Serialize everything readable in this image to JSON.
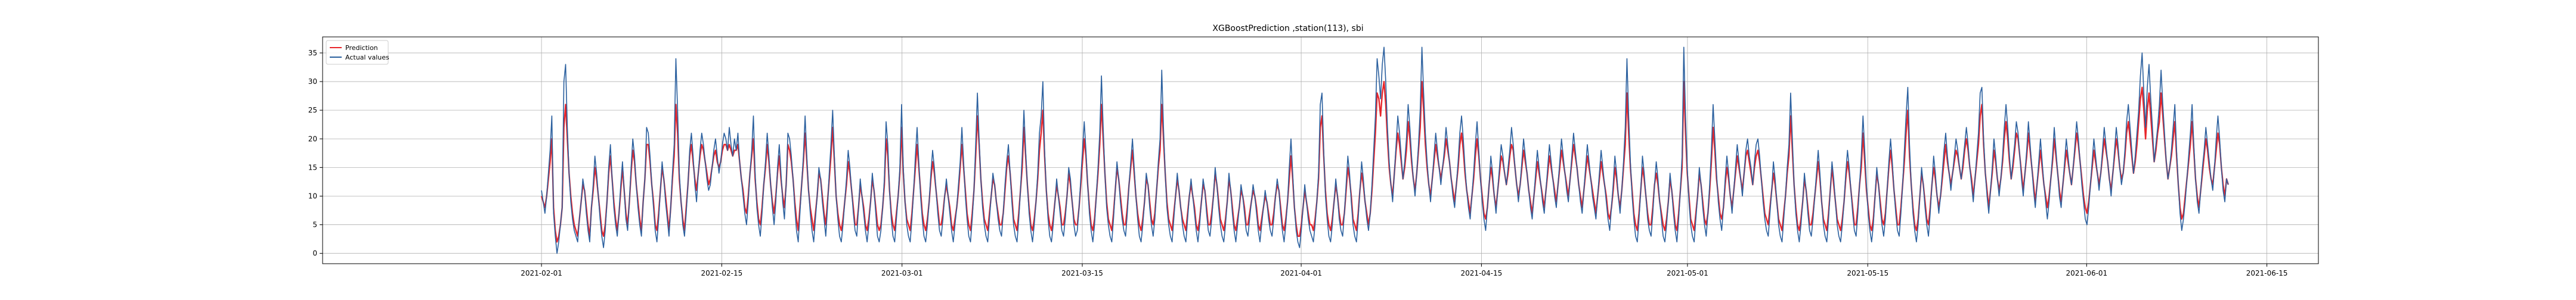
{
  "chart_data": {
    "type": "line",
    "title": "XGBoostPrediction ,station(113), sbi",
    "xlabel": "",
    "ylabel": "",
    "x_range": [
      "2021-01-15",
      "2021-06-19"
    ],
    "ylim": [
      -1.8,
      37.8
    ],
    "x_ticks": [
      "2021-02-01",
      "2021-02-15",
      "2021-03-01",
      "2021-03-15",
      "2021-04-01",
      "2021-04-15",
      "2021-05-01",
      "2021-05-15",
      "2021-06-01",
      "2021-06-15"
    ],
    "y_ticks": [
      0,
      5,
      10,
      15,
      20,
      25,
      30,
      35
    ],
    "grid": true,
    "legend_position": "upper-left",
    "series": [
      {
        "name": "Prediction",
        "color": "#e8262b"
      },
      {
        "name": "Actual values",
        "color": "#2a5f9e"
      }
    ],
    "x_start": "2021-02-01",
    "x_end": "2021-06-12",
    "actual_values": [
      11,
      9,
      7,
      10,
      14,
      18,
      24,
      7,
      3,
      0,
      2,
      5,
      8,
      30,
      33,
      22,
      14,
      9,
      6,
      4,
      3,
      2,
      6,
      9,
      13,
      11,
      7,
      4,
      2,
      8,
      12,
      17,
      14,
      10,
      6,
      3,
      1,
      4,
      9,
      15,
      19,
      13,
      8,
      5,
      3,
      7,
      12,
      16,
      11,
      6,
      4,
      9,
      15,
      20,
      17,
      12,
      8,
      5,
      3,
      9,
      13,
      22,
      21,
      17,
      12,
      8,
      4,
      2,
      6,
      11,
      16,
      13,
      9,
      6,
      3,
      8,
      14,
      19,
      34,
      25,
      14,
      9,
      5,
      3,
      7,
      12,
      18,
      21,
      17,
      12,
      9,
      14,
      18,
      21,
      19,
      16,
      13,
      11,
      12,
      15,
      18,
      20,
      17,
      14,
      16,
      19,
      21,
      20,
      18,
      22,
      19,
      17,
      20,
      18,
      21,
      16,
      13,
      10,
      7,
      5,
      9,
      14,
      18,
      24,
      14,
      8,
      5,
      3,
      7,
      12,
      16,
      21,
      17,
      12,
      8,
      5,
      9,
      15,
      19,
      14,
      9,
      6,
      12,
      21,
      20,
      17,
      13,
      8,
      4,
      2,
      7,
      12,
      17,
      24,
      17,
      11,
      7,
      4,
      2,
      6,
      10,
      15,
      13,
      9,
      6,
      3,
      8,
      14,
      19,
      25,
      17,
      10,
      6,
      3,
      2,
      5,
      9,
      13,
      18,
      15,
      11,
      7,
      4,
      3,
      8,
      13,
      10,
      7,
      4,
      2,
      5,
      9,
      14,
      11,
      7,
      3,
      2,
      4,
      8,
      13,
      23,
      19,
      11,
      6,
      3,
      2,
      6,
      10,
      15,
      26,
      15,
      9,
      5,
      3,
      2,
      6,
      11,
      17,
      22,
      16,
      10,
      6,
      3,
      2,
      5,
      9,
      14,
      18,
      15,
      11,
      7,
      4,
      3,
      6,
      10,
      13,
      10,
      7,
      4,
      2,
      5,
      8,
      12,
      16,
      22,
      16,
      10,
      6,
      3,
      2,
      6,
      11,
      19,
      28,
      20,
      13,
      8,
      5,
      3,
      2,
      6,
      10,
      14,
      12,
      9,
      6,
      4,
      3,
      7,
      12,
      16,
      19,
      14,
      9,
      5,
      3,
      2,
      6,
      11,
      17,
      25,
      18,
      12,
      7,
      4,
      2,
      5,
      9,
      14,
      21,
      24,
      30,
      18,
      11,
      6,
      3,
      2,
      5,
      9,
      13,
      10,
      7,
      4,
      3,
      6,
      10,
      15,
      13,
      9,
      5,
      3,
      4,
      8,
      13,
      18,
      23,
      18,
      12,
      7,
      4,
      2,
      5,
      10,
      15,
      21,
      31,
      22,
      14,
      8,
      5,
      3,
      2,
      6,
      11,
      16,
      13,
      9,
      6,
      4,
      3,
      7,
      12,
      16,
      20,
      15,
      10,
      6,
      3,
      2,
      5,
      9,
      14,
      12,
      8,
      5,
      3,
      6,
      11,
      16,
      20,
      32,
      22,
      14,
      8,
      5,
      3,
      2,
      6,
      10,
      14,
      11,
      8,
      5,
      3,
      2,
      6,
      10,
      13,
      10,
      7,
      4,
      2,
      5,
      9,
      13,
      11,
      7,
      4,
      3,
      6,
      10,
      15,
      12,
      8,
      5,
      3,
      2,
      5,
      9,
      14,
      11,
      7,
      4,
      2,
      5,
      8,
      12,
      10,
      7,
      4,
      3,
      6,
      9,
      12,
      10,
      7,
      4,
      2,
      5,
      8,
      11,
      9,
      6,
      4,
      3,
      6,
      10,
      13,
      11,
      7,
      4,
      2,
      5,
      9,
      15,
      20,
      14,
      8,
      4,
      2,
      1,
      4,
      8,
      12,
      9,
      6,
      4,
      3,
      2,
      5,
      9,
      14,
      26,
      28,
      18,
      10,
      6,
      3,
      2,
      5,
      9,
      13,
      10,
      6,
      4,
      3,
      7,
      12,
      17,
      14,
      9,
      5,
      3,
      2,
      6,
      11,
      16,
      13,
      9,
      6,
      4,
      7,
      12,
      18,
      24,
      34,
      31,
      27,
      33,
      36,
      30,
      22,
      16,
      12,
      9,
      14,
      19,
      24,
      21,
      17,
      13,
      16,
      20,
      26,
      22,
      17,
      13,
      10,
      14,
      19,
      25,
      36,
      28,
      21,
      16,
      12,
      9,
      13,
      17,
      21,
      18,
      15,
      12,
      15,
      18,
      22,
      19,
      16,
      13,
      10,
      8,
      12,
      16,
      21,
      24,
      20,
      15,
      11,
      8,
      6,
      10,
      14,
      19,
      23,
      18,
      13,
      9,
      6,
      4,
      8,
      12,
      17,
      14,
      10,
      7,
      11,
      15,
      19,
      17,
      14,
      12,
      15,
      18,
      22,
      19,
      15,
      12,
      9,
      12,
      16,
      20,
      17,
      14,
      11,
      8,
      6,
      10,
      14,
      18,
      15,
      12,
      9,
      7,
      11,
      15,
      19,
      16,
      13,
      10,
      8,
      12,
      16,
      20,
      17,
      14,
      11,
      9,
      13,
      17,
      21,
      18,
      15,
      12,
      9,
      7,
      11,
      15,
      19,
      16,
      13,
      10,
      8,
      6,
      10,
      14,
      18,
      15,
      12,
      9,
      6,
      4,
      8,
      12,
      17,
      14,
      10,
      7,
      11,
      16,
      22,
      34,
      24,
      16,
      10,
      6,
      3,
      2,
      6,
      11,
      17,
      14,
      10,
      6,
      4,
      3,
      7,
      12,
      16,
      13,
      9,
      6,
      3,
      2,
      5,
      9,
      14,
      11,
      7,
      4,
      2,
      6,
      11,
      17,
      36,
      24,
      15,
      9,
      5,
      3,
      2,
      6,
      10,
      15,
      12,
      8,
      5,
      3,
      7,
      12,
      18,
      26,
      20,
      14,
      9,
      6,
      4,
      8,
      13,
      17,
      14,
      10,
      7,
      11,
      15,
      19,
      16,
      13,
      10,
      14,
      18,
      20,
      17,
      15,
      12,
      16,
      19,
      20,
      17,
      13,
      9,
      6,
      4,
      3,
      7,
      11,
      16,
      13,
      9,
      5,
      3,
      2,
      6,
      10,
      15,
      19,
      28,
      20,
      12,
      7,
      4,
      2,
      5,
      9,
      14,
      11,
      7,
      4,
      3,
      6,
      10,
      14,
      18,
      14,
      9,
      5,
      3,
      2,
      6,
      11,
      16,
      13,
      9,
      5,
      3,
      2,
      5,
      9,
      14,
      18,
      15,
      11,
      7,
      4,
      3,
      7,
      12,
      17,
      24,
      18,
      12,
      7,
      4,
      2,
      5,
      10,
      15,
      12,
      8,
      5,
      3,
      6,
      11,
      16,
      20,
      16,
      11,
      7,
      4,
      3,
      7,
      12,
      18,
      24,
      29,
      19,
      12,
      7,
      4,
      2,
      5,
      10,
      15,
      12,
      8,
      5,
      3,
      7,
      12,
      17,
      14,
      10,
      7,
      10,
      14,
      18,
      21,
      17,
      14,
      11,
      14,
      17,
      20,
      18,
      15,
      13,
      16,
      19,
      22,
      19,
      15,
      12,
      9,
      13,
      17,
      21,
      28,
      29,
      20,
      14,
      10,
      7,
      11,
      15,
      20,
      17,
      13,
      10,
      13,
      17,
      22,
      26,
      22,
      17,
      13,
      16,
      19,
      23,
      21,
      17,
      13,
      10,
      14,
      18,
      23,
      19,
      15,
      11,
      8,
      12,
      16,
      20,
      16,
      12,
      9,
      6,
      9,
      13,
      17,
      22,
      18,
      14,
      10,
      8,
      12,
      16,
      20,
      17,
      14,
      12,
      15,
      19,
      23,
      20,
      16,
      12,
      9,
      6,
      5,
      8,
      12,
      16,
      20,
      17,
      14,
      11,
      14,
      18,
      22,
      19,
      16,
      13,
      10,
      14,
      18,
      22,
      19,
      15,
      12,
      14,
      18,
      23,
      26,
      22,
      18,
      14,
      17,
      21,
      25,
      31,
      35,
      28,
      22,
      29,
      33,
      27,
      22,
      16,
      19,
      22,
      26,
      32,
      26,
      21,
      16,
      13,
      15,
      18,
      22,
      26,
      18,
      12,
      7,
      4,
      6,
      9,
      13,
      17,
      21,
      26,
      19,
      13,
      9,
      7,
      11,
      15,
      18,
      22,
      19,
      16,
      13,
      11,
      15,
      20,
      24,
      20,
      15,
      11,
      9,
      13,
      12
    ],
    "prediction_values": [
      10,
      9,
      8,
      10,
      13,
      16,
      20,
      8,
      4,
      2,
      3,
      5,
      8,
      22,
      26,
      20,
      14,
      10,
      7,
      5,
      4,
      3,
      6,
      9,
      12,
      11,
      8,
      5,
      3,
      8,
      11,
      15,
      13,
      10,
      7,
      4,
      3,
      5,
      9,
      14,
      17,
      13,
      9,
      6,
      4,
      7,
      11,
      15,
      11,
      7,
      5,
      9,
      14,
      18,
      16,
      12,
      9,
      6,
      4,
      9,
      13,
      19,
      19,
      16,
      12,
      9,
      5,
      4,
      7,
      11,
      15,
      13,
      10,
      7,
      4,
      8,
      13,
      17,
      26,
      21,
      13,
      9,
      6,
      4,
      8,
      12,
      17,
      19,
      16,
      13,
      11,
      14,
      17,
      19,
      18,
      16,
      14,
      12,
      13,
      15,
      17,
      18,
      16,
      15,
      16,
      18,
      19,
      19,
      18,
      19,
      18,
      17,
      18,
      18,
      19,
      16,
      13,
      11,
      8,
      7,
      10,
      14,
      17,
      20,
      13,
      9,
      6,
      5,
      8,
      12,
      15,
      19,
      16,
      12,
      9,
      7,
      10,
      14,
      17,
      13,
      10,
      8,
      12,
      19,
      18,
      16,
      13,
      9,
      6,
      4,
      8,
      12,
      16,
      21,
      16,
      11,
      8,
      6,
      4,
      7,
      10,
      14,
      13,
      10,
      7,
      5,
      9,
      13,
      17,
      22,
      16,
      10,
      7,
      5,
      4,
      6,
      9,
      12,
      16,
      14,
      11,
      8,
      5,
      5,
      8,
      12,
      10,
      8,
      5,
      4,
      6,
      9,
      13,
      11,
      8,
      5,
      4,
      5,
      8,
      12,
      20,
      17,
      11,
      7,
      5,
      4,
      7,
      10,
      14,
      22,
      14,
      9,
      6,
      5,
      4,
      7,
      11,
      15,
      19,
      15,
      11,
      7,
      5,
      4,
      6,
      9,
      13,
      16,
      14,
      11,
      8,
      5,
      5,
      7,
      10,
      12,
      10,
      8,
      5,
      4,
      6,
      8,
      11,
      15,
      19,
      15,
      11,
      7,
      5,
      4,
      7,
      11,
      17,
      24,
      19,
      13,
      9,
      6,
      5,
      4,
      7,
      10,
      13,
      12,
      9,
      7,
      5,
      5,
      7,
      11,
      15,
      17,
      14,
      10,
      6,
      5,
      4,
      7,
      11,
      15,
      22,
      17,
      12,
      8,
      5,
      4,
      6,
      9,
      13,
      18,
      21,
      25,
      17,
      11,
      7,
      5,
      4,
      6,
      9,
      12,
      10,
      8,
      5,
      5,
      7,
      10,
      14,
      12,
      9,
      6,
      5,
      5,
      8,
      12,
      16,
      20,
      17,
      12,
      8,
      5,
      4,
      6,
      10,
      14,
      19,
      26,
      20,
      14,
      9,
      6,
      5,
      4,
      7,
      11,
      15,
      13,
      10,
      7,
      5,
      5,
      8,
      12,
      15,
      18,
      14,
      10,
      7,
      5,
      4,
      6,
      9,
      13,
      12,
      9,
      6,
      5,
      7,
      11,
      15,
      18,
      26,
      20,
      14,
      9,
      6,
      5,
      4,
      7,
      10,
      13,
      11,
      8,
      6,
      5,
      4,
      7,
      10,
      12,
      10,
      8,
      5,
      4,
      6,
      9,
      12,
      11,
      8,
      5,
      5,
      7,
      10,
      14,
      12,
      9,
      6,
      5,
      4,
      6,
      9,
      13,
      11,
      8,
      5,
      4,
      6,
      8,
      11,
      10,
      8,
      5,
      5,
      7,
      9,
      11,
      10,
      8,
      5,
      4,
      6,
      8,
      10,
      9,
      7,
      5,
      5,
      7,
      10,
      12,
      11,
      8,
      5,
      4,
      6,
      9,
      13,
      17,
      13,
      8,
      5,
      3,
      3,
      5,
      8,
      11,
      9,
      7,
      5,
      5,
      4,
      6,
      9,
      13,
      22,
      24,
      17,
      11,
      7,
      5,
      4,
      6,
      9,
      12,
      10,
      7,
      5,
      5,
      7,
      11,
      15,
      13,
      10,
      6,
      5,
      4,
      7,
      11,
      14,
      12,
      9,
      7,
      5,
      7,
      11,
      16,
      21,
      28,
      27,
      24,
      28,
      30,
      26,
      20,
      15,
      12,
      10,
      14,
      18,
      21,
      19,
      16,
      13,
      15,
      18,
      23,
      20,
      16,
      13,
      11,
      14,
      18,
      22,
      30,
      25,
      19,
      15,
      12,
      10,
      13,
      16,
      19,
      17,
      15,
      13,
      15,
      17,
      20,
      18,
      16,
      13,
      11,
      9,
      12,
      15,
      19,
      21,
      18,
      14,
      11,
      9,
      7,
      10,
      13,
      17,
      20,
      17,
      13,
      10,
      7,
      6,
      8,
      12,
      15,
      13,
      10,
      8,
      11,
      14,
      17,
      16,
      14,
      12,
      14,
      17,
      19,
      18,
      15,
      12,
      10,
      12,
      15,
      18,
      16,
      14,
      11,
      9,
      7,
      10,
      13,
      16,
      14,
      12,
      10,
      8,
      11,
      14,
      17,
      15,
      13,
      11,
      9,
      12,
      15,
      18,
      16,
      14,
      12,
      10,
      13,
      16,
      19,
      17,
      15,
      12,
      10,
      8,
      11,
      14,
      17,
      15,
      13,
      11,
      9,
      7,
      10,
      13,
      16,
      14,
      12,
      10,
      7,
      6,
      8,
      11,
      15,
      13,
      10,
      8,
      11,
      15,
      19,
      28,
      21,
      15,
      11,
      7,
      5,
      4,
      7,
      11,
      15,
      13,
      10,
      7,
      5,
      5,
      8,
      12,
      14,
      12,
      9,
      7,
      5,
      4,
      6,
      9,
      13,
      11,
      8,
      5,
      4,
      7,
      11,
      15,
      30,
      21,
      14,
      10,
      6,
      5,
      4,
      7,
      10,
      14,
      12,
      9,
      6,
      5,
      7,
      11,
      16,
      22,
      18,
      13,
      10,
      7,
      6,
      8,
      12,
      15,
      13,
      10,
      8,
      11,
      14,
      17,
      15,
      13,
      11,
      14,
      17,
      18,
      16,
      14,
      12,
      15,
      17,
      18,
      16,
      13,
      10,
      7,
      6,
      5,
      8,
      11,
      14,
      12,
      9,
      6,
      5,
      4,
      7,
      10,
      14,
      17,
      24,
      18,
      12,
      8,
      5,
      4,
      6,
      9,
      13,
      11,
      8,
      5,
      5,
      7,
      10,
      13,
      16,
      13,
      9,
      6,
      5,
      4,
      7,
      11,
      15,
      12,
      9,
      6,
      5,
      4,
      6,
      9,
      13,
      16,
      14,
      11,
      8,
      5,
      5,
      8,
      12,
      15,
      21,
      16,
      11,
      8,
      5,
      4,
      6,
      10,
      14,
      12,
      9,
      6,
      5,
      7,
      11,
      15,
      18,
      15,
      11,
      8,
      5,
      5,
      8,
      12,
      16,
      21,
      25,
      17,
      12,
      8,
      5,
      4,
      6,
      10,
      14,
      12,
      9,
      6,
      5,
      8,
      12,
      15,
      13,
      10,
      8,
      10,
      13,
      16,
      19,
      16,
      14,
      12,
      14,
      16,
      18,
      17,
      15,
      13,
      15,
      18,
      20,
      18,
      15,
      13,
      10,
      13,
      16,
      19,
      24,
      26,
      19,
      14,
      11,
      8,
      11,
      14,
      18,
      16,
      13,
      11,
      13,
      16,
      20,
      23,
      20,
      16,
      13,
      15,
      18,
      21,
      20,
      17,
      14,
      11,
      14,
      17,
      21,
      18,
      15,
      12,
      9,
      12,
      15,
      18,
      15,
      12,
      10,
      8,
      10,
      13,
      16,
      20,
      17,
      14,
      11,
      9,
      12,
      15,
      18,
      16,
      14,
      12,
      15,
      18,
      21,
      19,
      16,
      13,
      10,
      8,
      7,
      9,
      12,
      15,
      18,
      16,
      14,
      12,
      14,
      17,
      20,
      18,
      16,
      13,
      11,
      14,
      17,
      20,
      18,
      15,
      13,
      14,
      17,
      21,
      23,
      20,
      17,
      14,
      16,
      19,
      23,
      27,
      29,
      25,
      20,
      25,
      28,
      24,
      20,
      16,
      18,
      21,
      23,
      28,
      24,
      20,
      16,
      13,
      15,
      17,
      20,
      23,
      17,
      12,
      8,
      6,
      7,
      10,
      13,
      16,
      19,
      23,
      18,
      13,
      10,
      8,
      11,
      14,
      17,
      20,
      18,
      15,
      13,
      12,
      15,
      18,
      21,
      19,
      15,
      12,
      10,
      13,
      12
    ]
  }
}
